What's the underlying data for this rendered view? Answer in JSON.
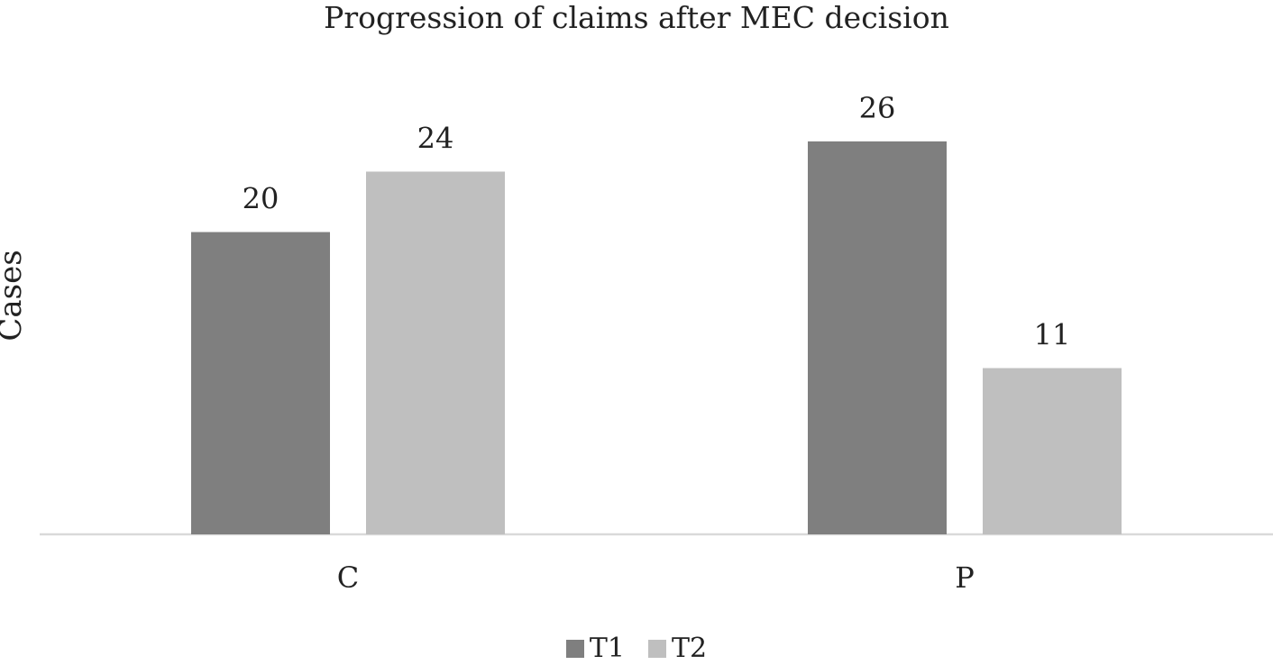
{
  "chart_data": {
    "type": "bar",
    "title": "Progression of claims after MEC decision",
    "xlabel": "",
    "ylabel": "Cases",
    "categories": [
      "C",
      "P"
    ],
    "series": [
      {
        "name": "T1",
        "values": [
          20,
          26
        ],
        "color": "#7f7f7f"
      },
      {
        "name": "T2",
        "values": [
          24,
          11
        ],
        "color": "#bfbfbf"
      }
    ],
    "ylim": [
      0,
      28.2
    ],
    "grid": false,
    "data_labels": true,
    "legend_position": "bottom"
  }
}
